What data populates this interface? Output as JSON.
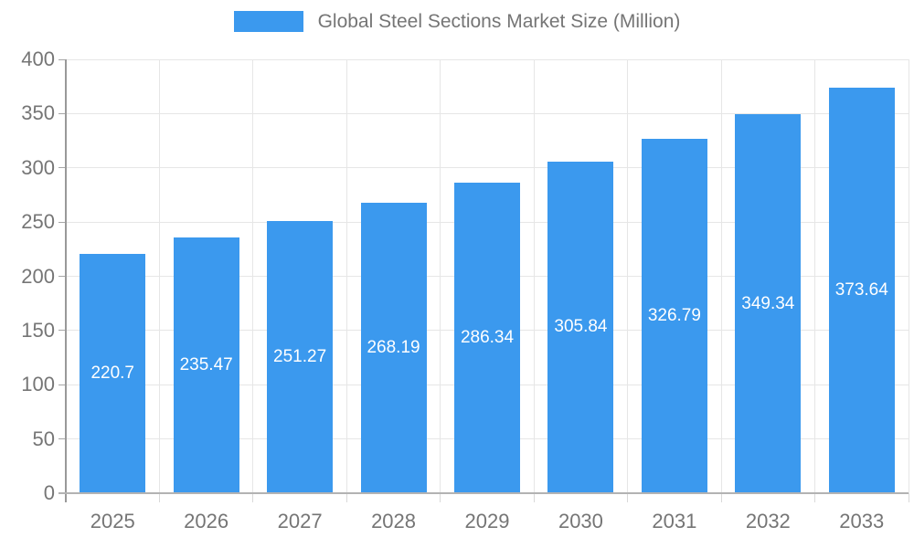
{
  "chart_data": {
    "type": "bar",
    "title": "Global Steel Sections Market Size (Million)",
    "legend": {
      "position": "top",
      "entries": [
        "Global Steel Sections Market Size (Million)"
      ]
    },
    "categories": [
      "2025",
      "2026",
      "2027",
      "2028",
      "2029",
      "2030",
      "2031",
      "2032",
      "2033"
    ],
    "series": [
      {
        "name": "Global Steel Sections Market Size (Million)",
        "values": [
          220.7,
          235.47,
          251.27,
          268.19,
          286.34,
          305.84,
          326.79,
          349.34,
          373.64
        ]
      }
    ],
    "value_labels": [
      "220.7",
      "235.47",
      "251.27",
      "268.19",
      "286.34",
      "305.84",
      "326.79",
      "349.34",
      "373.64"
    ],
    "xlabel": "",
    "ylabel": "",
    "ylim": [
      0,
      400
    ],
    "yticks": [
      0,
      50,
      100,
      150,
      200,
      250,
      300,
      350,
      400
    ],
    "grid": true,
    "colors": {
      "bar": "#3b99ee",
      "bar_value_text": "#ffffff",
      "axis_text": "#757575",
      "grid_line": "#e6e6e6",
      "x_axis_line": "#b3b3b3",
      "y_axis_line": "#999999",
      "y_tick": "#a6a6a6",
      "x_tick": "#d9d9d9",
      "background": "#ffffff"
    }
  }
}
